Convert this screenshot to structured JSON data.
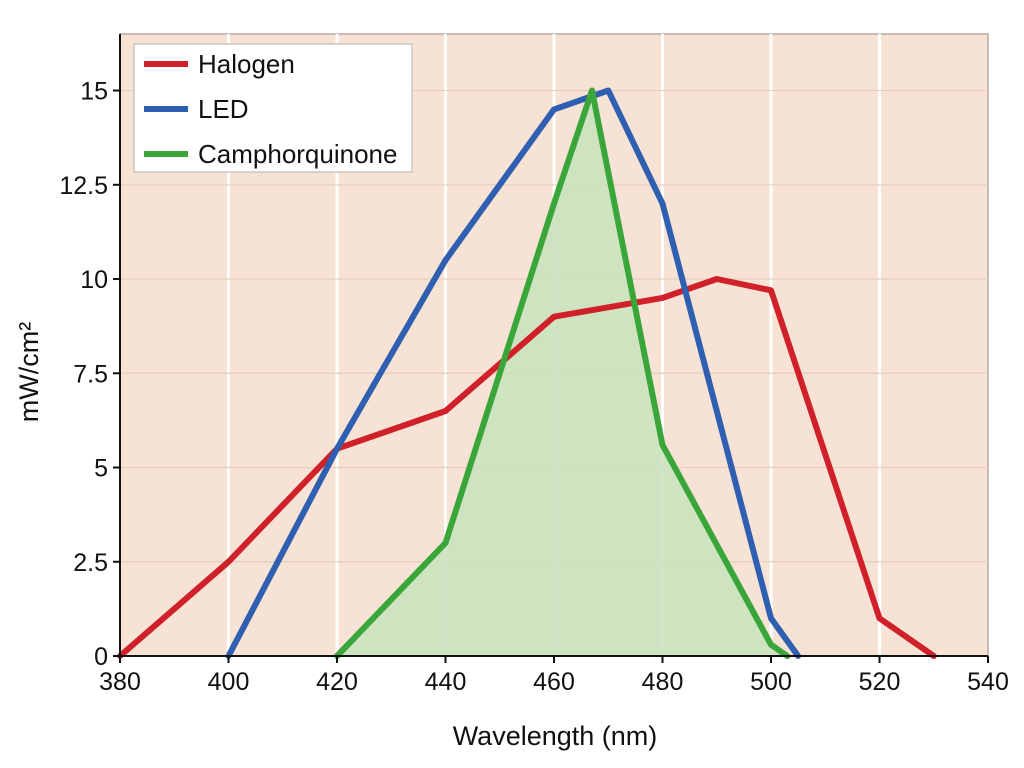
{
  "chart_data": {
    "type": "line",
    "title": "",
    "xlabel": "Wavelength (nm)",
    "ylabel": "mW/cm²",
    "xlim": [
      380,
      540
    ],
    "ylim": [
      0,
      16.5
    ],
    "x_ticks": [
      380,
      400,
      420,
      440,
      460,
      480,
      500,
      520,
      540
    ],
    "y_ticks": [
      0,
      2.5,
      5,
      7.5,
      10,
      12.5,
      15
    ],
    "x_tick_labels": [
      "380",
      "400",
      "420",
      "440",
      "460",
      "480",
      "500",
      "520",
      "540"
    ],
    "y_tick_labels": [
      "0",
      "2.5",
      "5",
      "7.5",
      "10",
      "12.5",
      "15"
    ],
    "grid": "vertical",
    "legend_position": "top-left",
    "background_color": "#f7e3d6",
    "series": [
      {
        "name": "Halogen",
        "color": "#d0202a",
        "fill": false,
        "points": [
          [
            380,
            0
          ],
          [
            400,
            2.5
          ],
          [
            420,
            5.5
          ],
          [
            440,
            6.5
          ],
          [
            460,
            9.0
          ],
          [
            480,
            9.5
          ],
          [
            490,
            10.0
          ],
          [
            500,
            9.7
          ],
          [
            520,
            1.0
          ],
          [
            530,
            0
          ]
        ]
      },
      {
        "name": "LED",
        "color": "#2e5fb0",
        "fill": false,
        "points": [
          [
            400,
            0
          ],
          [
            420,
            5.5
          ],
          [
            440,
            10.5
          ],
          [
            460,
            14.5
          ],
          [
            470,
            15.0
          ],
          [
            480,
            12.0
          ],
          [
            500,
            1.0
          ],
          [
            505,
            0
          ]
        ]
      },
      {
        "name": "Camphorquinone",
        "color": "#3aa63a",
        "fill": true,
        "fill_color": "#c9e3bf",
        "points": [
          [
            420,
            0
          ],
          [
            440,
            3.0
          ],
          [
            460,
            12.0
          ],
          [
            467,
            15.0
          ],
          [
            480,
            5.6
          ],
          [
            500,
            0.3
          ],
          [
            503,
            0
          ]
        ]
      }
    ]
  }
}
